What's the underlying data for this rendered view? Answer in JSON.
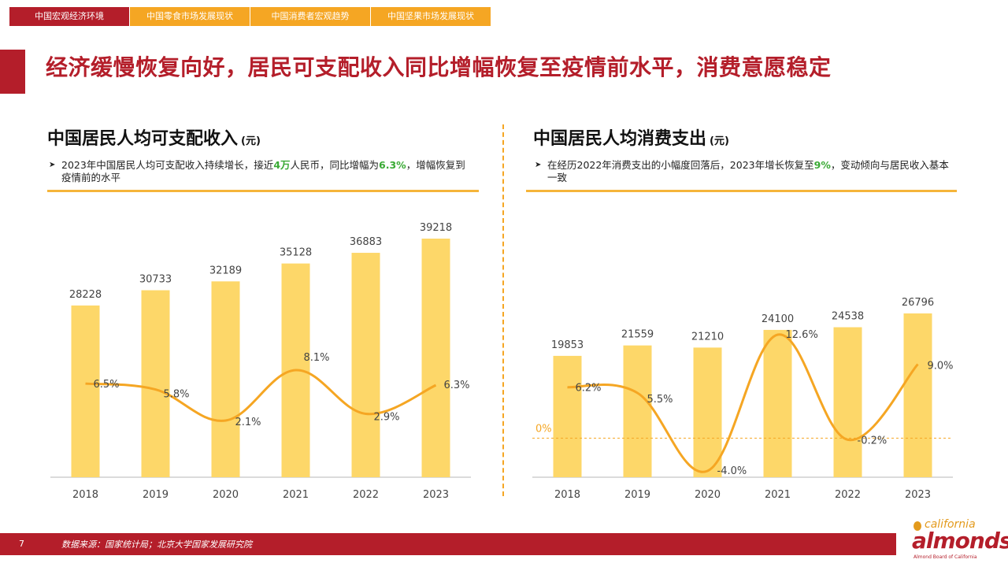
{
  "tabs": [
    "中国宏观经济环境",
    "中国零食市场发展现状",
    "中国消费者宏观趋势",
    "中国坚果市场发展现状"
  ],
  "headline": "经济缓慢恢复向好，居民可支配收入同比增幅恢复至疫情前水平，消费意愿稳定",
  "left": {
    "title": "中国居民人均可支配收入",
    "unit": "(元)",
    "note_a": "2023年中国居民人均可支配收入持续增长，接近",
    "note_hl1": "4万",
    "note_b": "人民币，同比增幅为",
    "note_hl2": "6.3%",
    "note_c": "，增幅恢复到疫情前的水平"
  },
  "right": {
    "title": "中国居民人均消费支出",
    "unit": "(元)",
    "note_a": "在经历2022年消费支出的小幅度回落后，2023年增长恢复至",
    "note_hl1": "9%",
    "note_b": "，变动倾向与居民收入基本一致",
    "zero_label": "0%"
  },
  "chart_data": [
    {
      "type": "bar",
      "title": "中国居民人均可支配收入",
      "categories": [
        "2018",
        "2019",
        "2020",
        "2021",
        "2022",
        "2023"
      ],
      "values": [
        28228,
        30733,
        32189,
        35128,
        36883,
        39218
      ],
      "growth": [
        6.5,
        5.8,
        2.1,
        8.1,
        2.9,
        6.3
      ],
      "growth_labels": [
        "6.5%",
        "5.8%",
        "2.1%",
        "8.1%",
        "2.9%",
        "6.3%"
      ],
      "bar_color": "#fdd769",
      "line_color": "#f5a623"
    },
    {
      "type": "bar",
      "title": "中国居民人均消费支出",
      "categories": [
        "2018",
        "2019",
        "2020",
        "2021",
        "2022",
        "2023"
      ],
      "values": [
        19853,
        21559,
        21210,
        24100,
        24538,
        26796
      ],
      "growth": [
        6.2,
        5.5,
        -4.0,
        12.6,
        -0.2,
        9.0
      ],
      "growth_labels": [
        "6.2%",
        "5.5%",
        "-4.0%",
        "12.6%",
        "-0.2%",
        "9.0%"
      ],
      "bar_color": "#fdd769",
      "line_color": "#f5a623"
    }
  ],
  "footer": {
    "page": "7",
    "source": "数据来源：国家统计局；北京大学国家发展研究院"
  },
  "logo": {
    "top": "california",
    "main": "almonds",
    "sub": "Almond Board of California"
  }
}
